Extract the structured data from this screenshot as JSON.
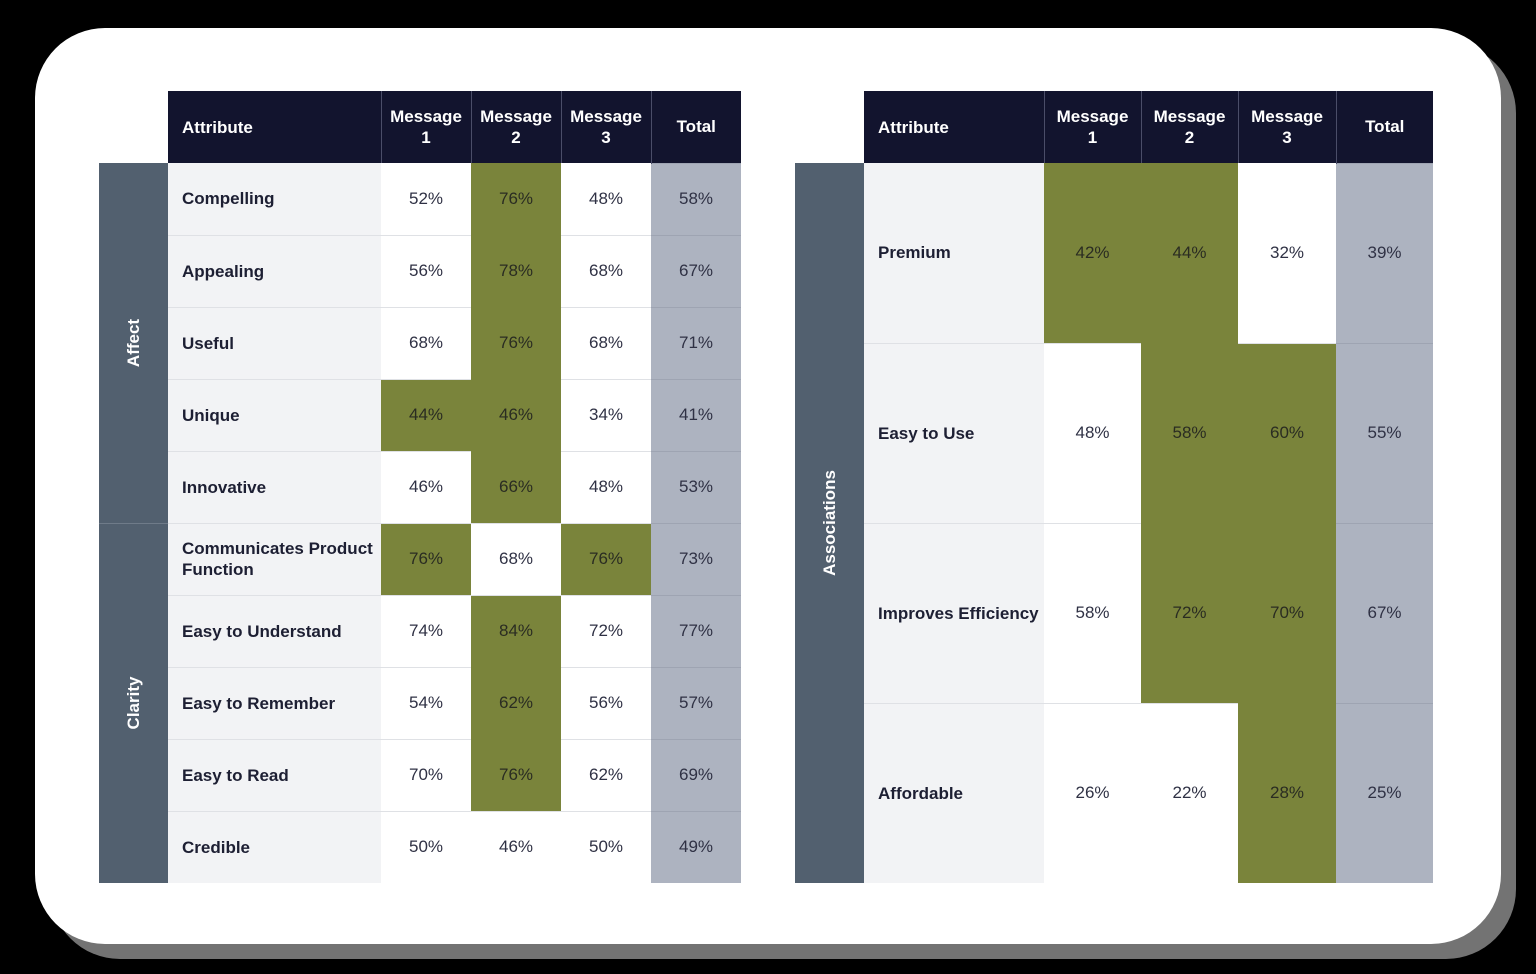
{
  "colors": {
    "header_bg": "#12142e",
    "group_bg": "#52606f",
    "label_bg": "#f2f3f5",
    "highlight": "#7a843b",
    "total_bg": "#adb3c0",
    "card_bg": "#ffffff",
    "page_bg": "#000000"
  },
  "left_table": {
    "headers": [
      "Attribute",
      "Message\n1",
      "Message\n2",
      "Message\n3",
      "Total"
    ],
    "header_lines": [
      [
        "Attribute"
      ],
      [
        "Message",
        "1"
      ],
      [
        "Message",
        "2"
      ],
      [
        "Message",
        "3"
      ],
      [
        "Total"
      ]
    ],
    "groups": [
      {
        "label": "Affect",
        "rows": [
          {
            "attribute": "Compelling",
            "m1": "52%",
            "m2": "76%",
            "m3": "48%",
            "total": "58%",
            "highlight": [
              false,
              true,
              false
            ]
          },
          {
            "attribute": "Appealing",
            "m1": "56%",
            "m2": "78%",
            "m3": "68%",
            "total": "67%",
            "highlight": [
              false,
              true,
              false
            ]
          },
          {
            "attribute": "Useful",
            "m1": "68%",
            "m2": "76%",
            "m3": "68%",
            "total": "71%",
            "highlight": [
              false,
              true,
              false
            ]
          },
          {
            "attribute": "Unique",
            "m1": "44%",
            "m2": "46%",
            "m3": "34%",
            "total": "41%",
            "highlight": [
              true,
              true,
              false
            ]
          },
          {
            "attribute": "Innovative",
            "m1": "46%",
            "m2": "66%",
            "m3": "48%",
            "total": "53%",
            "highlight": [
              false,
              true,
              false
            ]
          }
        ]
      },
      {
        "label": "Clarity",
        "rows": [
          {
            "attribute": "Communicates Product Function",
            "m1": "76%",
            "m2": "68%",
            "m3": "76%",
            "total": "73%",
            "highlight": [
              true,
              false,
              true
            ]
          },
          {
            "attribute": "Easy to Understand",
            "m1": "74%",
            "m2": "84%",
            "m3": "72%",
            "total": "77%",
            "highlight": [
              false,
              true,
              false
            ]
          },
          {
            "attribute": "Easy to Remember",
            "m1": "54%",
            "m2": "62%",
            "m3": "56%",
            "total": "57%",
            "highlight": [
              false,
              true,
              false
            ]
          },
          {
            "attribute": "Easy to Read",
            "m1": "70%",
            "m2": "76%",
            "m3": "62%",
            "total": "69%",
            "highlight": [
              false,
              true,
              false
            ]
          },
          {
            "attribute": "Credible",
            "m1": "50%",
            "m2": "46%",
            "m3": "50%",
            "total": "49%",
            "highlight": [
              false,
              false,
              false
            ]
          }
        ]
      }
    ]
  },
  "right_table": {
    "header_lines": [
      [
        "Attribute"
      ],
      [
        "Message",
        "1"
      ],
      [
        "Message",
        "2"
      ],
      [
        "Message",
        "3"
      ],
      [
        "Total"
      ]
    ],
    "groups": [
      {
        "label": "Associations",
        "rows": [
          {
            "attribute": "Premium",
            "m1": "42%",
            "m2": "44%",
            "m3": "32%",
            "total": "39%",
            "highlight": [
              true,
              true,
              false
            ]
          },
          {
            "attribute": "Easy to Use",
            "m1": "48%",
            "m2": "58%",
            "m3": "60%",
            "total": "55%",
            "highlight": [
              false,
              true,
              true
            ]
          },
          {
            "attribute": "Improves Efficiency",
            "m1": "58%",
            "m2": "72%",
            "m3": "70%",
            "total": "67%",
            "highlight": [
              false,
              true,
              true
            ]
          },
          {
            "attribute": "Affordable",
            "m1": "26%",
            "m2": "22%",
            "m3": "28%",
            "total": "25%",
            "highlight": [
              false,
              false,
              true
            ]
          }
        ]
      }
    ]
  }
}
